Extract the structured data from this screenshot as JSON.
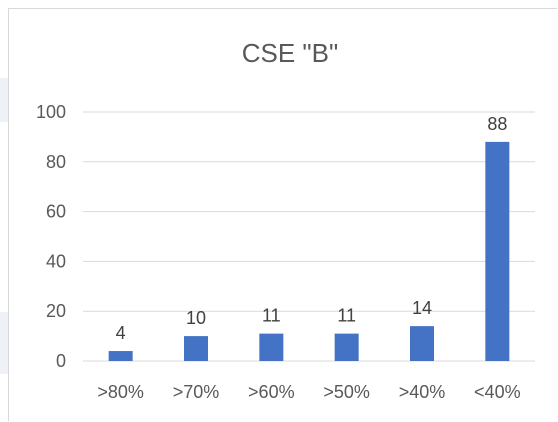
{
  "chart_data": {
    "type": "bar",
    "title": "CSE \"B\"",
    "categories": [
      ">80%",
      ">70%",
      ">60%",
      ">50%",
      ">40%",
      "<40%"
    ],
    "values": [
      4,
      10,
      11,
      11,
      14,
      88
    ],
    "ylim": [
      0,
      100
    ],
    "yticks": [
      0,
      20,
      40,
      60,
      80,
      100
    ],
    "xlabel": "",
    "ylabel": "",
    "grid": true,
    "legend": "none",
    "data_labels": true,
    "colors": {
      "bar": "#4472c4",
      "grid": "#d9d9d9",
      "text": "#595959"
    }
  }
}
